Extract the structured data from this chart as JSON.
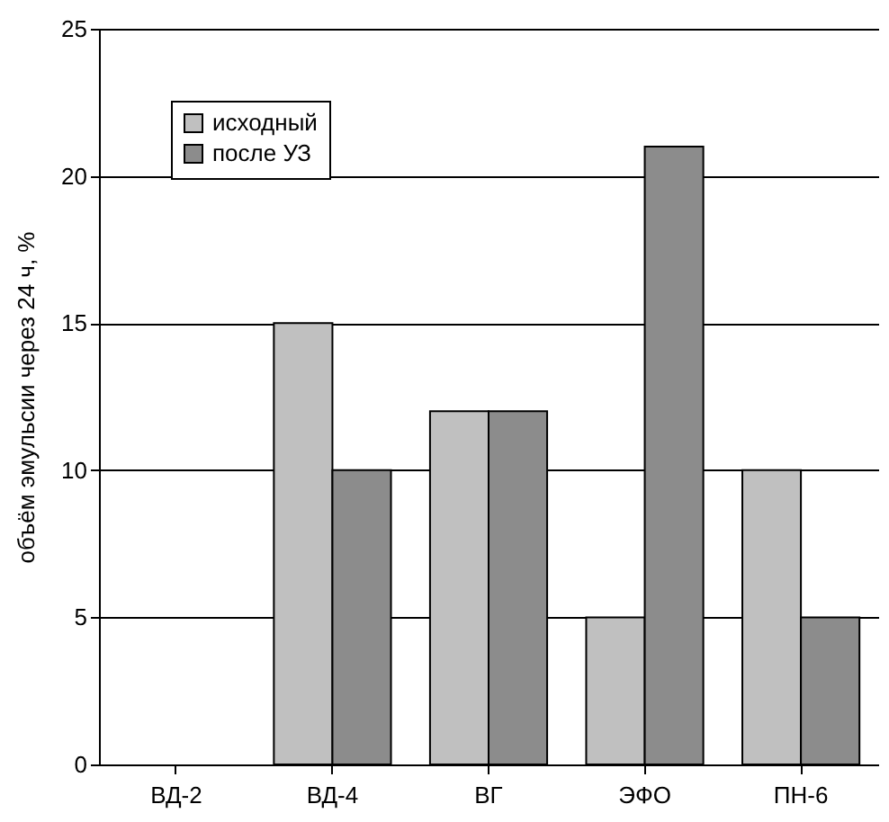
{
  "chart_data": {
    "type": "bar",
    "ylabel": "объём эмульсии через 24 ч, %",
    "categories": [
      "ВД-2",
      "ВД-4",
      "ВГ",
      "ЭФО",
      "ПН-6"
    ],
    "series": [
      {
        "name": "исходный",
        "color": "#c0c0c0",
        "values": [
          0,
          15,
          12,
          5,
          10
        ]
      },
      {
        "name": "после УЗ",
        "color": "#8c8c8c",
        "values": [
          0,
          10,
          12,
          21,
          5
        ]
      }
    ],
    "ylim": [
      0,
      25
    ],
    "yticks": [
      0,
      5,
      10,
      15,
      20,
      25
    ],
    "grid": "y",
    "legend": "top left"
  }
}
